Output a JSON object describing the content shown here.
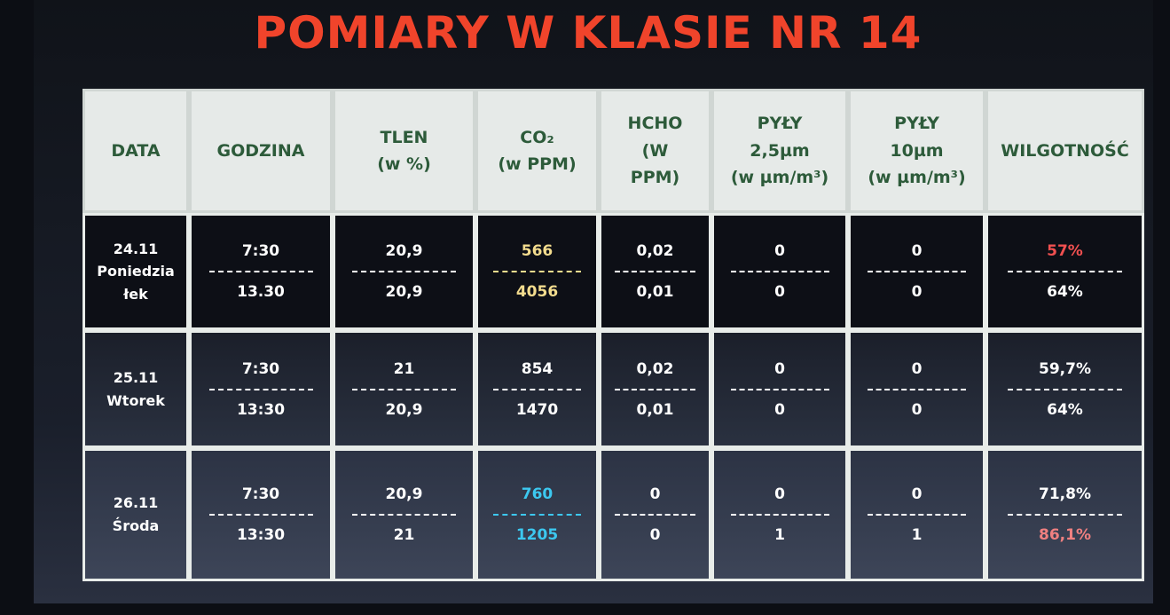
{
  "title": "POMIARY W KLASIE NR 14",
  "headers": [
    "DATA",
    "GODZINA",
    "TLEN\n(w %)",
    "CO₂\n(w PPM)",
    "HCHO\n(W\nPPM)",
    "PYŁY\n2,5µm\n(w µm/m³)",
    "PYŁY\n10µm\n(w µm/m³)",
    "WILGOTNOŚĆ"
  ],
  "rows": [
    {
      "date": "24.11\nPoniedzia\nłek",
      "cells": [
        {
          "top": "7:30",
          "bottom": "13.30"
        },
        {
          "top": "20,9",
          "bottom": "20,9"
        },
        {
          "top": "566",
          "bottom": "4056",
          "color": "#f3dc8e"
        },
        {
          "top": "0,02",
          "bottom": "0,01"
        },
        {
          "top": "0",
          "bottom": "0"
        },
        {
          "top": "0",
          "bottom": "0"
        },
        {
          "top": "57%",
          "bottom": "64%",
          "top_color": "#f05050"
        }
      ]
    },
    {
      "date": "25.11\nWtorek",
      "cells": [
        {
          "top": "7:30",
          "bottom": "13:30"
        },
        {
          "top": "21",
          "bottom": "20,9"
        },
        {
          "top": "854",
          "bottom": "1470"
        },
        {
          "top": "0,02",
          "bottom": "0,01"
        },
        {
          "top": "0",
          "bottom": "0"
        },
        {
          "top": "0",
          "bottom": "0"
        },
        {
          "top": "59,7%",
          "bottom": "64%"
        }
      ]
    },
    {
      "date": "26.11\nŚroda",
      "cells": [
        {
          "top": "7:30",
          "bottom": "13:30"
        },
        {
          "top": "20,9",
          "bottom": "21"
        },
        {
          "top": "760",
          "bottom": "1205",
          "color": "#3cc8f0"
        },
        {
          "top": "0",
          "bottom": "0"
        },
        {
          "top": "0",
          "bottom": "1"
        },
        {
          "top": "0",
          "bottom": "1"
        },
        {
          "top": "71,8%",
          "bottom": "86,1%",
          "bottom_color": "#f08080"
        }
      ]
    }
  ]
}
